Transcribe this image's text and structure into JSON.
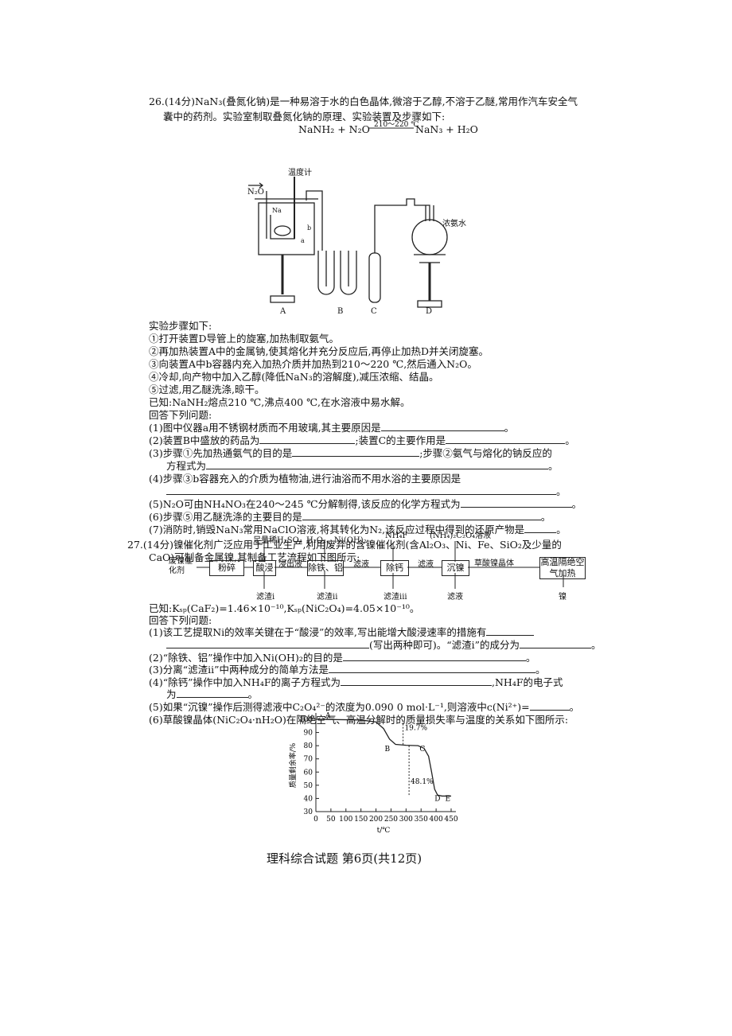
{
  "q26": {
    "heading": "26.(14分)NaN₃(叠氮化钠)是一种易溶于水的白色晶体,微溶于乙醇,不溶于乙醚,常用作汽车安全气",
    "heading_cont": "囊中的药剂。实验室制取叠氮化钠的原理、实验装置及步骤如下:",
    "equation": {
      "reactants": "NaNH₂ + N₂O",
      "condition": "210～220 ℃",
      "products": "NaN₃ + H₂O"
    },
    "apparatus": {
      "thermometer": "温度计",
      "gas_in": "N₂O",
      "na": "Na",
      "a": "a",
      "b": "b",
      "ammonia": "浓氨水",
      "units": [
        "A",
        "B",
        "C",
        "D"
      ]
    },
    "steps_title": "实验步骤如下:",
    "steps": [
      "①打开装置D导管上的旋塞,加热制取氨气。",
      "②再加热装置A中的金属钠,使其熔化并充分反应后,再停止加热D并关闭旋塞。",
      "③向装置A中b容器内充入加热介质并加热到210～220 ℃,然后通入N₂O。",
      "④冷却,向产物中加入乙醇(降低NaN₃的溶解度),减压浓缩、结晶。",
      "⑤过滤,用乙醚洗涤,晾干。"
    ],
    "known": "已知:NaNH₂熔点210 ℃,沸点400 ℃,在水溶液中易水解。",
    "prompt": "回答下列问题:",
    "questions": [
      [
        "(1)图中仪器a用不锈钢材质而不用玻璃,其主要原因是",
        "。"
      ],
      [
        "(2)装置B中盛放的药品为",
        ";装置C的主要作用是",
        "。"
      ],
      [
        "(3)步骤①先加热通氨气的目的是",
        ";步骤②氨气与熔化的钠反应的",
        "方程式为",
        "。"
      ],
      [
        "(4)步骤③b容器充入的介质为植物油,进行油浴而不用水浴的主要原因是",
        "。"
      ],
      [
        "(5)N₂O可由NH₄NO₃在240～245 ℃分解制得,该反应的化学方程式为",
        "。"
      ],
      [
        "(6)步骤⑤用乙醚洗涤的主要目的是",
        "。"
      ],
      [
        "(7)消防时,销毁NaN₃常用NaClO溶液,将其转化为N₂,该反应过程中得到的还原产物是",
        "。"
      ]
    ]
  },
  "q27": {
    "heading": "27.(14分)镍催化剂广泛应用于工业生产,利用废弃的含镍催化剂(含Al₂O₃、Ni、Fe、SiO₂及少量的",
    "heading_cont": "CaO)可制备金属镍,其制备工艺流程如下图所示:",
    "flow": {
      "feed": "废镍催化剂",
      "steps": [
        "粉碎",
        "酸浸",
        "除铁、铝",
        "除钙",
        "沉镍",
        "高温隔绝空气加热"
      ],
      "reagents": [
        "足量稀H₂SO₄",
        "H₂O₂、Ni(OH)₂",
        "NH₄F",
        "(NH₄)₂C₂O₄溶液"
      ],
      "streams": [
        "浸出液",
        "滤液",
        "滤液",
        "草酸镍晶体"
      ],
      "outputs": [
        "滤渣i",
        "滤渣ii",
        "滤渣iii",
        "滤液",
        "镍"
      ]
    },
    "known": "已知:Kₛₚ(CaF₂)=1.46×10⁻¹⁰,Kₛₚ(NiC₂O₄)=4.05×10⁻¹⁰。",
    "prompt": "回答下列问题:",
    "questions": [
      [
        "(1)该工艺提取Ni的效率关键在于“酸浸”的效率,写出能增大酸浸速率的措施有",
        "(写出两种即可)。“滤渣i”的成分为",
        "。"
      ],
      [
        "(2)“除铁、铝”操作中加入Ni(OH)₂的目的是",
        "。"
      ],
      [
        "(3)分离“滤渣ii”中两种成分的简单方法是",
        "。"
      ],
      [
        "(4)“除钙”操作中加入NH₄F的离子方程式为",
        ",NH₄F的电子式",
        "为",
        "。"
      ],
      [
        "(5)如果“沉镍”操作后测得滤液中C₂O₄²⁻的浓度为0.090 0 mol·L⁻¹,则溶液中c(Ni²⁺)=",
        "。"
      ],
      [
        "(6)草酸镍晶体(NiC₂O₄·nH₂O)在隔绝空气、高温分解时的质量损失率与温度的关系如下图所示:"
      ]
    ],
    "figure": {
      "ylabel": "质量剩余率/%",
      "xlabel": "t/℃",
      "xlim": [
        0,
        450
      ],
      "ylim": [
        30,
        100
      ],
      "xticks": [
        0,
        50,
        100,
        150,
        200,
        250,
        300,
        350,
        400,
        450
      ],
      "yticks": [
        30,
        40,
        50,
        60,
        70,
        80,
        90,
        100
      ],
      "curve": {
        "x": [
          0,
          150,
          200,
          225,
          245,
          265,
          300,
          340,
          360,
          375,
          385,
          395,
          405,
          420,
          450
        ],
        "y": [
          100,
          99.5,
          98,
          93,
          85,
          81,
          80.3,
          80,
          78,
          72,
          60,
          47,
          42.5,
          41.8,
          41.8
        ]
      },
      "point_labels": [
        "A",
        "B",
        "C",
        "D",
        "E"
      ],
      "annotations": [
        "19.7%",
        "48.1%"
      ]
    }
  },
  "footer": "理科综合试题 第6页(共12页)"
}
